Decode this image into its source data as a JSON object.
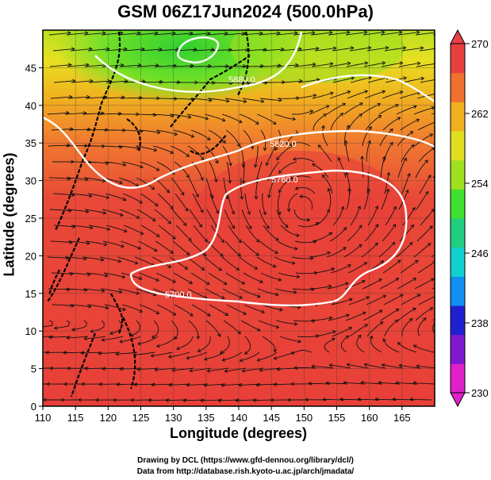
{
  "title": "GSM 06Z17Jun2024 (500.0hPa)",
  "x_axis_label": "Longitude (degrees)",
  "y_axis_label": "Latitude  (degrees)",
  "x_ticks": [
    "110",
    "115",
    "120",
    "125",
    "130",
    "135",
    "140",
    "145",
    "150",
    "155",
    "160",
    "165"
  ],
  "y_ticks": [
    "0",
    "5",
    "10",
    "15",
    "20",
    "25",
    "30",
    "35",
    "40",
    "45"
  ],
  "colorbar": {
    "ticks": [
      "230",
      "238",
      "246",
      "254",
      "262",
      "270"
    ],
    "colors": [
      "#e020c8",
      "#8018d0",
      "#2020d0",
      "#1090f0",
      "#10d0d0",
      "#20d080",
      "#40e030",
      "#a0e020",
      "#e0e020",
      "#f0b020",
      "#f07030",
      "#e84040"
    ]
  },
  "contour_labels": [
    "5880.0",
    "5820.0",
    "5760.0",
    "5700.0"
  ],
  "credits": [
    "Drawing by DCL (https://www.gfd-dennou.org/library/dcl/)",
    "Data from http://database.rish.kyoto-u.ac.jp/arch/jmadata/"
  ]
}
